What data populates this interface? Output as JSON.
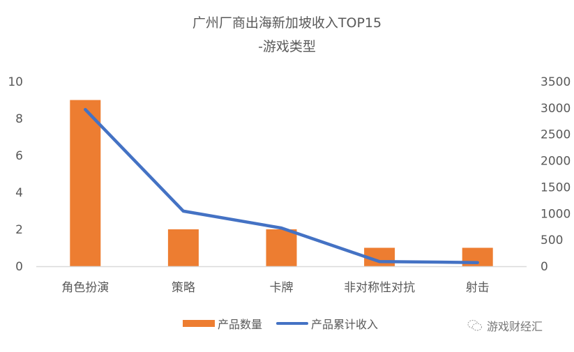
{
  "title": {
    "line1": "广州厂商出海新加坡收入TOP15",
    "line2": "-游戏类型"
  },
  "chart_data": {
    "type": "bar+line",
    "title": "广州厂商出海新加坡收入TOP15 -游戏类型",
    "categories": [
      "角色扮演",
      "策略",
      "卡牌",
      "非对称性对抗",
      "射击"
    ],
    "series": [
      {
        "name": "产品数量",
        "type": "bar",
        "axis": "left",
        "color": "#ED7D31",
        "values": [
          9,
          2,
          2,
          1,
          1
        ]
      },
      {
        "name": "产品累计收入",
        "type": "line",
        "axis": "right",
        "color": "#4472C4",
        "values": [
          2970,
          1045,
          725,
          90,
          70
        ]
      }
    ],
    "left_axis": {
      "ticks": [
        "0",
        "2",
        "4",
        "6",
        "8",
        "10"
      ],
      "ylim": [
        0,
        10
      ]
    },
    "right_axis": {
      "ticks": [
        "0",
        "500",
        "1000",
        "1500",
        "2000",
        "2500",
        "3000",
        "3500"
      ],
      "ylim": [
        0,
        3500
      ]
    },
    "grid": false,
    "legend_position": "bottom"
  },
  "legend": {
    "bar_label": "产品数量",
    "line_label": "产品累计收入"
  },
  "watermark": {
    "text": "游戏财经汇",
    "icon": "wechat-icon"
  }
}
